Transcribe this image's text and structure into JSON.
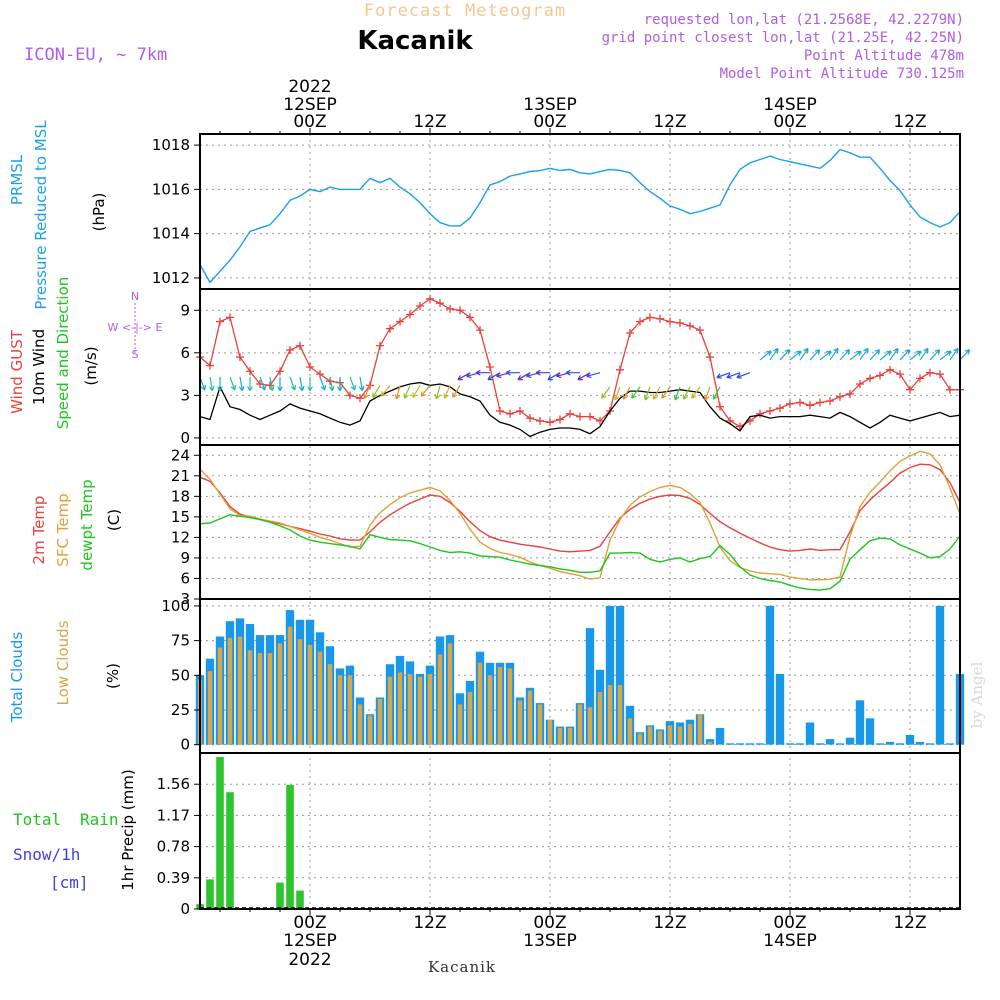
{
  "header": {
    "super_title": "Forecast Meteogram",
    "location": "Kacanik",
    "model": "ICON-EU, ~ 7km",
    "requested": "requested lon,lat (21.2568E, 42.2279N)",
    "grid_point": "grid point closest lon,lat (21.25E, 42.25N)",
    "point_altitude": "Point Altitude 478m",
    "model_altitude": "Model Point Altitude 730.125m",
    "footer_location": "Kacanik",
    "watermark": "by Angel"
  },
  "colors": {
    "pressure": "#1aa0e8",
    "gust": "#e8413c",
    "wind": "#000000",
    "temp": "#e8413c",
    "sfc": "#e2a03a",
    "dew": "#1fc41f",
    "total_clouds": "#1a98e8",
    "low_clouds": "#d8a548",
    "rain": "#2ec42e",
    "purple": "#b05de0",
    "snow": "#4040e0"
  },
  "time_axis": {
    "top_ticks": [
      {
        "label": "00Z",
        "date": "12SEP",
        "year": "2022",
        "hour": 0
      },
      {
        "label": "12Z",
        "date": "",
        "year": "",
        "hour": 12
      },
      {
        "label": "00Z",
        "date": "13SEP",
        "year": "",
        "hour": 24
      },
      {
        "label": "12Z",
        "date": "",
        "year": "",
        "hour": 36
      },
      {
        "label": "00Z",
        "date": "14SEP",
        "year": "",
        "hour": 48
      },
      {
        "label": "12Z",
        "date": "",
        "year": "",
        "hour": 60
      }
    ],
    "start_hour": -11,
    "end_hour": 65
  },
  "labels": {
    "pressure": [
      "PRMSL",
      "Pressure Reduced to MSL",
      "(hPa)"
    ],
    "wind": [
      "Wind GUST",
      "10m Wind",
      "Speed and Direction",
      "(m/s)"
    ],
    "compass": [
      "N",
      "W <-|-> E",
      "S"
    ],
    "temp": [
      "2m Temp",
      "SFC Temp",
      "dewpt Temp",
      "(C)"
    ],
    "clouds": [
      "Total Clouds",
      "Low Clouds",
      "(%)"
    ],
    "precip": [
      "Total",
      "Rain",
      "Snow/1h",
      "[cm]",
      "1hr Precip (mm)"
    ]
  },
  "chart_data": [
    {
      "type": "line",
      "name": "pressure",
      "ylabel": "(hPa)",
      "ylim": [
        1011.5,
        1018.5
      ],
      "yticks": [
        1012,
        1014,
        1016,
        1018
      ],
      "x": [
        -11,
        -10,
        -9,
        -8,
        -7,
        -6,
        -5,
        -4,
        -3,
        -2,
        -1,
        0,
        1,
        2,
        3,
        4,
        5,
        6,
        7,
        8,
        9,
        10,
        11,
        12,
        13,
        14,
        15,
        16,
        17,
        18,
        19,
        20,
        21,
        22,
        23,
        24,
        25,
        26,
        27,
        28,
        29,
        30,
        31,
        32,
        33,
        34,
        35,
        36,
        37,
        38,
        39,
        40,
        41,
        42,
        43,
        44,
        45,
        46,
        47,
        48,
        49,
        50,
        51,
        52,
        53,
        54,
        55,
        56,
        57,
        58,
        59,
        60,
        61,
        62,
        63,
        64,
        65
      ],
      "series": [
        {
          "name": "PRMSL",
          "values": [
            1012.6,
            1011.8,
            1012.3,
            1012.8,
            1013.4,
            1014.1,
            1014.25,
            1014.4,
            1014.9,
            1015.5,
            1015.7,
            1016.0,
            1015.9,
            1016.1,
            1016.0,
            1016.0,
            1016.0,
            1016.5,
            1016.3,
            1016.5,
            1016.1,
            1015.8,
            1015.4,
            1014.9,
            1014.5,
            1014.35,
            1014.35,
            1014.7,
            1015.4,
            1016.2,
            1016.35,
            1016.6,
            1016.7,
            1016.8,
            1016.85,
            1016.95,
            1016.85,
            1016.9,
            1016.75,
            1016.7,
            1016.8,
            1016.9,
            1016.85,
            1016.75,
            1016.3,
            1015.9,
            1015.6,
            1015.25,
            1015.1,
            1014.9,
            1015.0,
            1015.15,
            1015.3,
            1016.2,
            1016.9,
            1017.2,
            1017.35,
            1017.5,
            1017.35,
            1017.25,
            1017.15,
            1017.05,
            1016.95,
            1017.3,
            1017.8,
            1017.65,
            1017.45,
            1017.45,
            1016.95,
            1016.4,
            1015.95,
            1015.3,
            1014.75,
            1014.5,
            1014.3,
            1014.5,
            1015.0
          ]
        }
      ]
    },
    {
      "type": "line",
      "name": "wind",
      "ylabel": "(m/s)",
      "ylim": [
        -0.5,
        10.5
      ],
      "yticks": [
        0,
        3,
        6,
        9
      ],
      "x": [
        -11,
        -10,
        -9,
        -8,
        -7,
        -6,
        -5,
        -4,
        -3,
        -2,
        -1,
        0,
        1,
        2,
        3,
        4,
        5,
        6,
        7,
        8,
        9,
        10,
        11,
        12,
        13,
        14,
        15,
        16,
        17,
        18,
        19,
        20,
        21,
        22,
        23,
        24,
        25,
        26,
        27,
        28,
        29,
        30,
        31,
        32,
        33,
        34,
        35,
        36,
        37,
        38,
        39,
        40,
        41,
        42,
        43,
        44,
        45,
        46,
        47,
        48,
        49,
        50,
        51,
        52,
        53,
        54,
        55,
        56,
        57,
        58,
        59,
        60,
        61,
        62,
        63,
        64,
        65
      ],
      "series": [
        {
          "name": "Wind GUST",
          "values": [
            5.7,
            5.1,
            8.2,
            8.5,
            5.7,
            4.7,
            3.8,
            3.7,
            4.7,
            6.2,
            6.5,
            5.0,
            4.5,
            4.0,
            3.9,
            3.0,
            2.8,
            3.7,
            6.5,
            7.7,
            8.2,
            8.7,
            9.3,
            9.8,
            9.5,
            9.1,
            9.0,
            8.5,
            7.6,
            5.0,
            1.9,
            1.7,
            1.9,
            1.4,
            1.2,
            1.1,
            1.3,
            1.7,
            1.5,
            1.5,
            1.2,
            1.9,
            4.8,
            7.4,
            8.2,
            8.5,
            8.4,
            8.2,
            8.1,
            7.9,
            7.6,
            5.7,
            2.2,
            1.2,
            0.8,
            1.2,
            1.7,
            1.9,
            2.1,
            2.4,
            2.5,
            2.3,
            2.5,
            2.6,
            2.9,
            3.1,
            3.8,
            4.2,
            4.4,
            4.8,
            4.5,
            3.4,
            4.2,
            4.6,
            4.5,
            3.4,
            3.4
          ]
        },
        {
          "name": "10m Wind",
          "values": [
            1.5,
            1.3,
            3.6,
            2.2,
            2.0,
            1.6,
            1.3,
            1.6,
            1.9,
            2.4,
            2.1,
            1.9,
            1.7,
            1.4,
            1.1,
            0.9,
            1.2,
            2.6,
            3.0,
            3.3,
            3.6,
            3.8,
            3.9,
            3.7,
            3.8,
            3.6,
            3.1,
            2.9,
            2.6,
            1.6,
            1.1,
            0.9,
            0.6,
            0.1,
            0.4,
            0.6,
            0.7,
            0.7,
            0.6,
            0.3,
            0.8,
            1.9,
            2.8,
            3.3,
            3.3,
            3.2,
            3.2,
            3.3,
            3.4,
            3.3,
            3.2,
            2.2,
            1.4,
            1.0,
            0.5,
            1.5,
            1.6,
            1.4,
            1.5,
            1.5,
            1.5,
            1.6,
            1.5,
            1.4,
            1.8,
            1.5,
            1.1,
            0.7,
            1.1,
            1.6,
            1.4,
            1.2,
            1.4,
            1.6,
            1.8,
            1.5,
            1.6
          ]
        }
      ]
    },
    {
      "type": "line",
      "name": "temperature",
      "ylabel": "(C)",
      "ylim": [
        3,
        25.5
      ],
      "yticks": [
        3,
        6,
        9,
        12,
        15,
        18,
        21,
        24
      ],
      "x": [
        -11,
        -10,
        -9,
        -8,
        -7,
        -6,
        -5,
        -4,
        -3,
        -2,
        -1,
        0,
        1,
        2,
        3,
        4,
        5,
        6,
        7,
        8,
        9,
        10,
        11,
        12,
        13,
        14,
        15,
        16,
        17,
        18,
        19,
        20,
        21,
        22,
        23,
        24,
        25,
        26,
        27,
        28,
        29,
        30,
        31,
        32,
        33,
        34,
        35,
        36,
        37,
        38,
        39,
        40,
        41,
        42,
        43,
        44,
        45,
        46,
        47,
        48,
        49,
        50,
        51,
        52,
        53,
        54,
        55,
        56,
        57,
        58,
        59,
        60,
        61,
        62,
        63,
        64,
        65
      ],
      "series": [
        {
          "name": "2m Temp",
          "values": [
            20.8,
            20.2,
            18.5,
            16.5,
            15.4,
            15.0,
            14.6,
            14.3,
            14.0,
            13.6,
            13.3,
            12.9,
            12.5,
            12.2,
            11.8,
            11.6,
            11.6,
            12.8,
            14.2,
            15.3,
            16.2,
            17.0,
            17.6,
            18.2,
            18.0,
            17.1,
            15.8,
            14.3,
            13.0,
            12.1,
            11.6,
            11.3,
            11.0,
            10.8,
            10.6,
            10.3,
            10.0,
            9.9,
            10.0,
            10.1,
            10.7,
            12.8,
            14.8,
            16.1,
            17.0,
            17.6,
            18.0,
            18.2,
            18.1,
            17.7,
            16.8,
            15.5,
            14.3,
            13.4,
            12.6,
            11.9,
            11.2,
            10.6,
            10.2,
            10.0,
            10.1,
            10.3,
            10.1,
            10.2,
            10.2,
            12.8,
            15.9,
            17.5,
            18.8,
            20.0,
            21.4,
            22.2,
            22.7,
            22.6,
            21.9,
            20.0,
            17.1
          ]
        },
        {
          "name": "SFC Temp",
          "values": [
            22.0,
            20.5,
            18.3,
            16.2,
            15.2,
            15.1,
            14.7,
            14.4,
            14.1,
            13.6,
            13.1,
            12.6,
            12.0,
            11.6,
            11.1,
            10.6,
            10.7,
            13.8,
            15.6,
            16.8,
            17.8,
            18.5,
            18.9,
            19.3,
            18.8,
            17.4,
            15.5,
            13.2,
            11.3,
            10.4,
            9.8,
            9.5,
            9.1,
            8.4,
            7.9,
            7.5,
            7.0,
            6.7,
            6.4,
            5.9,
            6.1,
            11.6,
            14.6,
            16.7,
            17.9,
            18.7,
            19.3,
            19.6,
            19.3,
            18.4,
            17.1,
            14.1,
            10.6,
            8.6,
            7.6,
            7.1,
            6.8,
            6.7,
            6.6,
            6.2,
            6.0,
            5.8,
            5.8,
            5.9,
            6.2,
            12.1,
            16.5,
            18.6,
            20.1,
            21.7,
            23.1,
            23.9,
            24.6,
            24.2,
            22.6,
            19.2,
            15.4
          ]
        },
        {
          "name": "dewpt Temp",
          "values": [
            14.0,
            14.1,
            14.7,
            15.3,
            15.1,
            14.9,
            14.6,
            14.2,
            13.7,
            13.1,
            12.2,
            11.6,
            11.3,
            11.1,
            10.9,
            10.7,
            10.3,
            12.4,
            12.0,
            11.7,
            11.6,
            11.5,
            11.1,
            10.6,
            10.1,
            9.8,
            9.9,
            9.7,
            9.3,
            9.2,
            9.1,
            8.7,
            8.4,
            8.1,
            7.9,
            7.7,
            7.4,
            7.2,
            6.9,
            6.9,
            7.1,
            9.7,
            9.7,
            9.8,
            9.7,
            8.8,
            8.4,
            8.8,
            9.0,
            8.4,
            8.9,
            9.2,
            10.8,
            9.5,
            7.7,
            6.5,
            6.0,
            5.7,
            5.5,
            5.0,
            4.6,
            4.4,
            4.3,
            4.5,
            5.6,
            8.8,
            10.2,
            11.5,
            11.9,
            11.8,
            10.9,
            10.3,
            9.7,
            9.0,
            9.2,
            10.3,
            12.2
          ]
        }
      ]
    },
    {
      "type": "bar",
      "name": "clouds",
      "ylabel": "(%)",
      "ylim": [
        0,
        105
      ],
      "yticks": [
        0,
        25,
        50,
        75,
        100
      ],
      "x": [
        -11,
        -10,
        -9,
        -8,
        -7,
        -6,
        -5,
        -4,
        -3,
        -2,
        -1,
        0,
        1,
        2,
        3,
        4,
        5,
        6,
        7,
        8,
        9,
        10,
        11,
        12,
        13,
        14,
        15,
        16,
        17,
        18,
        19,
        20,
        21,
        22,
        23,
        24,
        25,
        26,
        27,
        28,
        29,
        30,
        31,
        32,
        33,
        34,
        35,
        36,
        37,
        38,
        39,
        40,
        41,
        42,
        43,
        44,
        45,
        46,
        47,
        48,
        49,
        50,
        51,
        52,
        53,
        54,
        55,
        56,
        57,
        58,
        59,
        60,
        61,
        62,
        63,
        64,
        65
      ],
      "series": [
        {
          "name": "Total Clouds",
          "values": [
            50,
            62,
            78,
            89,
            91,
            87,
            79,
            79,
            79,
            97,
            90,
            90,
            81,
            71,
            55,
            57,
            34,
            22,
            34,
            58,
            64,
            60,
            51,
            57,
            78,
            79,
            37,
            46,
            67,
            59,
            59,
            59,
            34,
            41,
            30,
            18,
            13,
            13,
            30,
            84,
            54,
            100,
            100,
            28,
            9,
            14,
            11,
            17,
            16,
            18,
            22,
            4,
            12,
            1,
            1,
            1,
            1,
            100,
            51,
            1,
            1,
            16,
            1,
            4,
            1,
            5,
            32,
            19,
            1,
            2,
            1,
            7,
            2,
            1,
            100,
            1,
            51
          ]
        },
        {
          "name": "Low Clouds",
          "values": [
            47,
            53,
            70,
            77,
            78,
            68,
            66,
            66,
            73,
            85,
            76,
            72,
            67,
            58,
            50,
            50,
            29,
            21,
            33,
            49,
            52,
            51,
            49,
            51,
            65,
            73,
            29,
            38,
            59,
            50,
            56,
            55,
            32,
            39,
            29,
            18,
            12,
            12,
            29,
            27,
            38,
            43,
            43,
            19,
            8,
            13,
            10,
            14,
            13,
            15,
            22,
            2,
            0,
            0,
            0,
            0,
            0,
            0,
            0,
            0,
            0,
            0,
            0,
            0,
            0,
            0,
            0,
            0,
            0,
            0,
            0,
            0,
            0,
            0,
            0,
            0,
            0
          ]
        }
      ]
    },
    {
      "type": "bar",
      "name": "precipitation",
      "ylabel": "1hr Precip (mm)",
      "ylim": [
        0,
        1.95
      ],
      "yticks": [
        0,
        0.39,
        0.78,
        1.17,
        1.56
      ],
      "ytick_labels": [
        "0",
        "0.39",
        "0.78",
        "1.17",
        "1.56"
      ],
      "x": [
        -11,
        -10,
        -9,
        -8,
        -7,
        -6,
        -5,
        -4,
        -3,
        -2,
        -1,
        0
      ],
      "series": [
        {
          "name": "Total Rain",
          "values": [
            0.06,
            0.37,
            1.9,
            1.46,
            0,
            0,
            0,
            0,
            0.33,
            1.55,
            0.23,
            0
          ]
        }
      ]
    }
  ]
}
